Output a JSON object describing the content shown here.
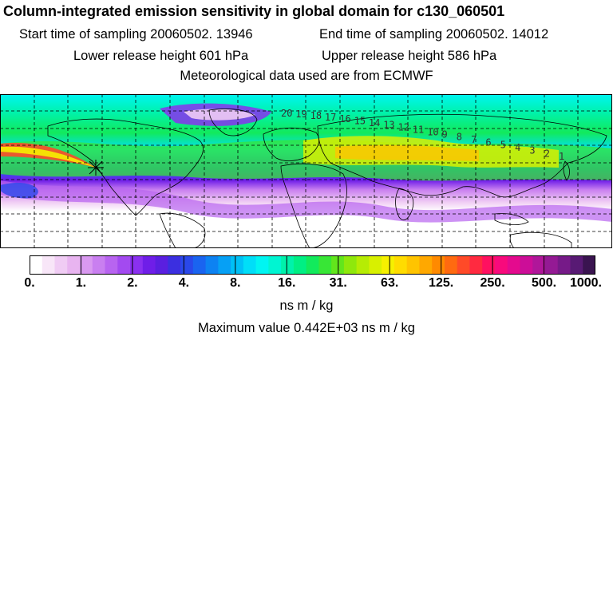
{
  "title": "Column-integrated emission sensitivity in global domain for c130_060501",
  "sampling": {
    "start": "Start time of sampling 20060502. 13946",
    "end": "End time of sampling 20060502. 14012"
  },
  "release": {
    "lower": "Lower release height  601 hPa",
    "upper": "Upper release height  586 hPa"
  },
  "meteo": "Meteorological data used are from ECMWF",
  "map": {
    "projection": "lat-lon global domain",
    "grid": "dashed",
    "trajectory_labels": [
      "20",
      "19",
      "18",
      "17",
      "16",
      "15",
      "14",
      "13",
      "12",
      "11",
      "10",
      "9",
      "8",
      "7",
      "6",
      "5",
      "4",
      "3",
      "2",
      "1"
    ]
  },
  "colorbar": {
    "labels": [
      "0.",
      "1.",
      "2.",
      "4.",
      "8.",
      "16.",
      "31.",
      "63.",
      "125.",
      "250.",
      "500.",
      "1000."
    ],
    "colors": [
      "#ffffff",
      "#f8e6f8",
      "#f0ccf4",
      "#e8b4f0",
      "#d999f0",
      "#c97ff0",
      "#b864f0",
      "#a34af0",
      "#8a30f0",
      "#6f1ee8",
      "#5a1fe0",
      "#3b2fe0",
      "#2a48ea",
      "#1a64f0",
      "#0d82f2",
      "#06a0f5",
      "#00c0f6",
      "#00def8",
      "#00f5f2",
      "#00f5d2",
      "#00f2ab",
      "#00ef84",
      "#12ea5c",
      "#38e636",
      "#62e61c",
      "#8fe80c",
      "#b6ec04",
      "#d8f000",
      "#f6f000",
      "#ffdc00",
      "#ffc400",
      "#ffa800",
      "#ff8a00",
      "#ff6a10",
      "#ff4a28",
      "#ff2a40",
      "#ff1060",
      "#f80a7c",
      "#e40a8e",
      "#cc0e98",
      "#b0169a",
      "#941a94",
      "#761a88",
      "#581a74",
      "#3a1450"
    ]
  },
  "units": "ns m / kg",
  "maximum": "Maximum value  0.442E+03 ns m / kg"
}
